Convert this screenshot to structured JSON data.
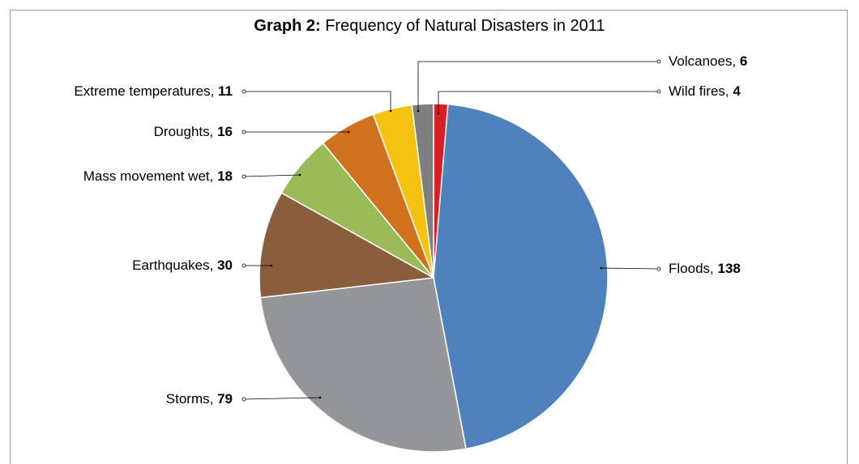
{
  "chart_data": {
    "type": "pie",
    "title_bold": "Graph 2:",
    "title_rest": " Frequency of Natural Disasters in 2011",
    "slices": [
      {
        "label": "Wild fires",
        "value": 4,
        "color": "#d81f26"
      },
      {
        "label": "Floods",
        "value": 138,
        "color": "#4f81bd"
      },
      {
        "label": "Storms",
        "value": 79,
        "color": "#939598"
      },
      {
        "label": "Earthquakes",
        "value": 30,
        "color": "#8a5e3c"
      },
      {
        "label": "Mass movement wet",
        "value": 18,
        "color": "#9bbb59"
      },
      {
        "label": "Droughts",
        "value": 16,
        "color": "#d0711e"
      },
      {
        "label": "Extreme temperatures",
        "value": 11,
        "color": "#f5c211"
      },
      {
        "label": "Volcanoes",
        "value": 6,
        "color": "#7f7f7f"
      }
    ],
    "start_angle": "12 o'clock, clockwise",
    "separator": ", "
  }
}
